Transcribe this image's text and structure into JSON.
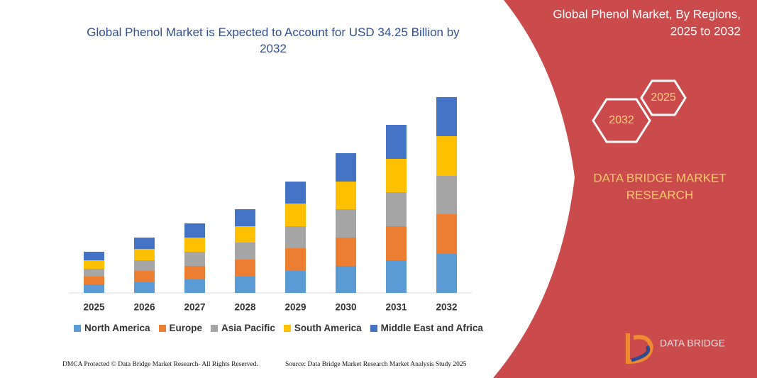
{
  "chart_data": {
    "type": "bar",
    "stacked": true,
    "title": "Global Phenol Market is Expected to Account for USD 34.25 Billion by 2032",
    "categories": [
      "2025",
      "2026",
      "2027",
      "2028",
      "2029",
      "2030",
      "2031",
      "2032"
    ],
    "series": [
      {
        "name": "North America",
        "color": "#5b9bd5",
        "values": [
          12,
          15,
          19,
          23,
          31,
          38,
          46,
          55
        ]
      },
      {
        "name": "Europe",
        "color": "#ed7d31",
        "values": [
          11,
          16,
          19,
          24,
          32,
          40,
          48,
          56
        ]
      },
      {
        "name": "Asia Pacific",
        "color": "#a5a5a5",
        "values": [
          11,
          15,
          20,
          24,
          31,
          40,
          48,
          54
        ]
      },
      {
        "name": "South America",
        "color": "#ffc000",
        "values": [
          12,
          16,
          20,
          23,
          32,
          39,
          47,
          56
        ]
      },
      {
        "name": "Middle East and Africa",
        "color": "#4472c4",
        "values": [
          12,
          16,
          20,
          24,
          31,
          40,
          48,
          55
        ]
      }
    ]
  },
  "panel": {
    "title": [
      "Global Phenol Market, By Regions,",
      "2025 to 2032"
    ],
    "hex_labels": [
      "2025",
      "2032"
    ],
    "brand": [
      "DATA BRIDGE MARKET",
      "RESEARCH"
    ]
  },
  "logo": {
    "name": "DATA BRIDGE"
  },
  "footer": {
    "dmca": "DMCA Protected © Data Bridge Market Research-  All Rights Reserved.",
    "source": "Source: Data Bridge Market Research  Market Analysis Study 2025"
  }
}
